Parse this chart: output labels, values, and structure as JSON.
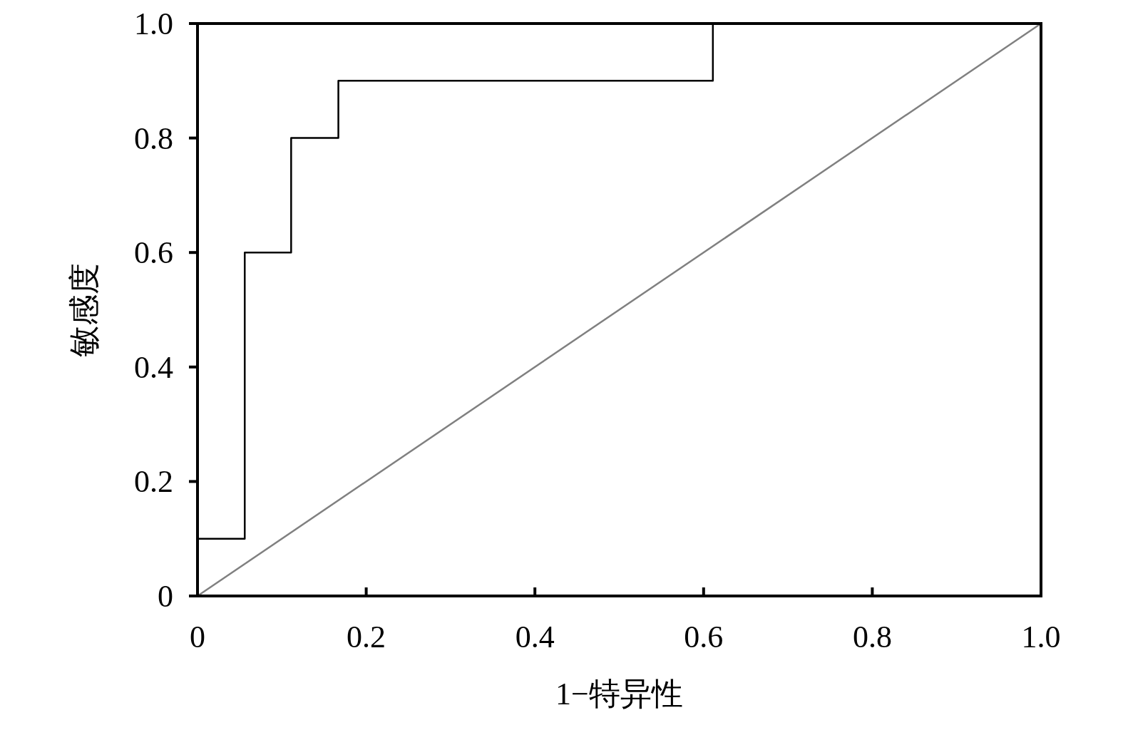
{
  "chart_data": {
    "type": "line",
    "xlabel": "1−特异性",
    "ylabel": "敏感度",
    "xlim": [
      0,
      1
    ],
    "ylim": [
      0,
      1
    ],
    "xticks": [
      0,
      0.2,
      0.4,
      0.6,
      0.8,
      {
        "value": 1,
        "label": "1.0"
      }
    ],
    "yticks": [
      0,
      0.2,
      0.4,
      0.6,
      0.8,
      {
        "value": 1,
        "label": "1.0"
      }
    ],
    "marker": "none",
    "line_style": "solid",
    "series": [
      {
        "color": "#000000",
        "x": [
          0,
          0,
          0.056,
          0.056,
          0.111,
          0.111,
          0.167,
          0.167,
          0.611,
          0.611,
          1
        ],
        "values": [
          0,
          0.1,
          0.1,
          0.6,
          0.6,
          0.8,
          0.8,
          0.9,
          0.9,
          1,
          1
        ]
      },
      {
        "color": "#808080",
        "x": [
          0,
          1
        ],
        "values": [
          0,
          1
        ]
      }
    ]
  }
}
